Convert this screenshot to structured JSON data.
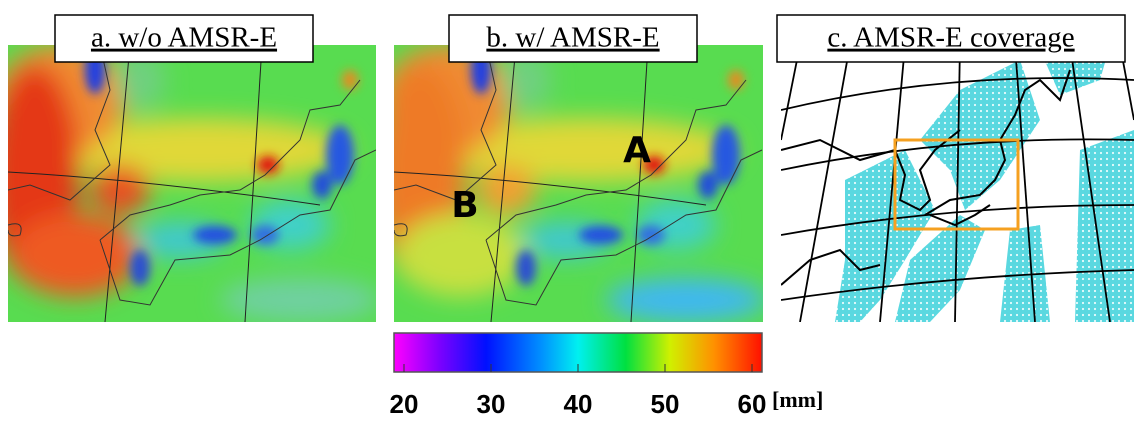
{
  "panels": [
    {
      "label": "a. w/o AMSR-E"
    },
    {
      "label": "b. w/ AMSR-E",
      "annotations": [
        "A",
        "B"
      ]
    },
    {
      "label": "c. AMSR-E coverage"
    }
  ],
  "colorbar": {
    "lim": [
      20,
      60
    ],
    "ticks": [
      20,
      30,
      40,
      50,
      60
    ],
    "unit": "[mm]"
  }
}
